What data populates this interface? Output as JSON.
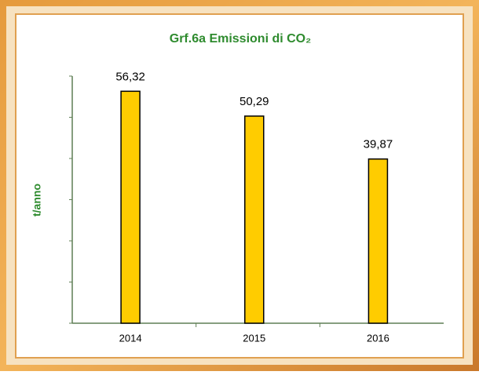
{
  "chart_data": {
    "type": "bar",
    "title": "Grf.6a Emissioni di CO₂",
    "y_label": "t/anno",
    "categories": [
      "2014",
      "2015",
      "2016"
    ],
    "values": [
      56.32,
      50.29,
      39.87
    ],
    "value_labels": [
      "56,32",
      "50,29",
      "39,87"
    ],
    "color": "#ffcc00",
    "ylim": [
      0,
      60
    ],
    "yticks": [
      0,
      10,
      20,
      30,
      40,
      50,
      60
    ]
  }
}
